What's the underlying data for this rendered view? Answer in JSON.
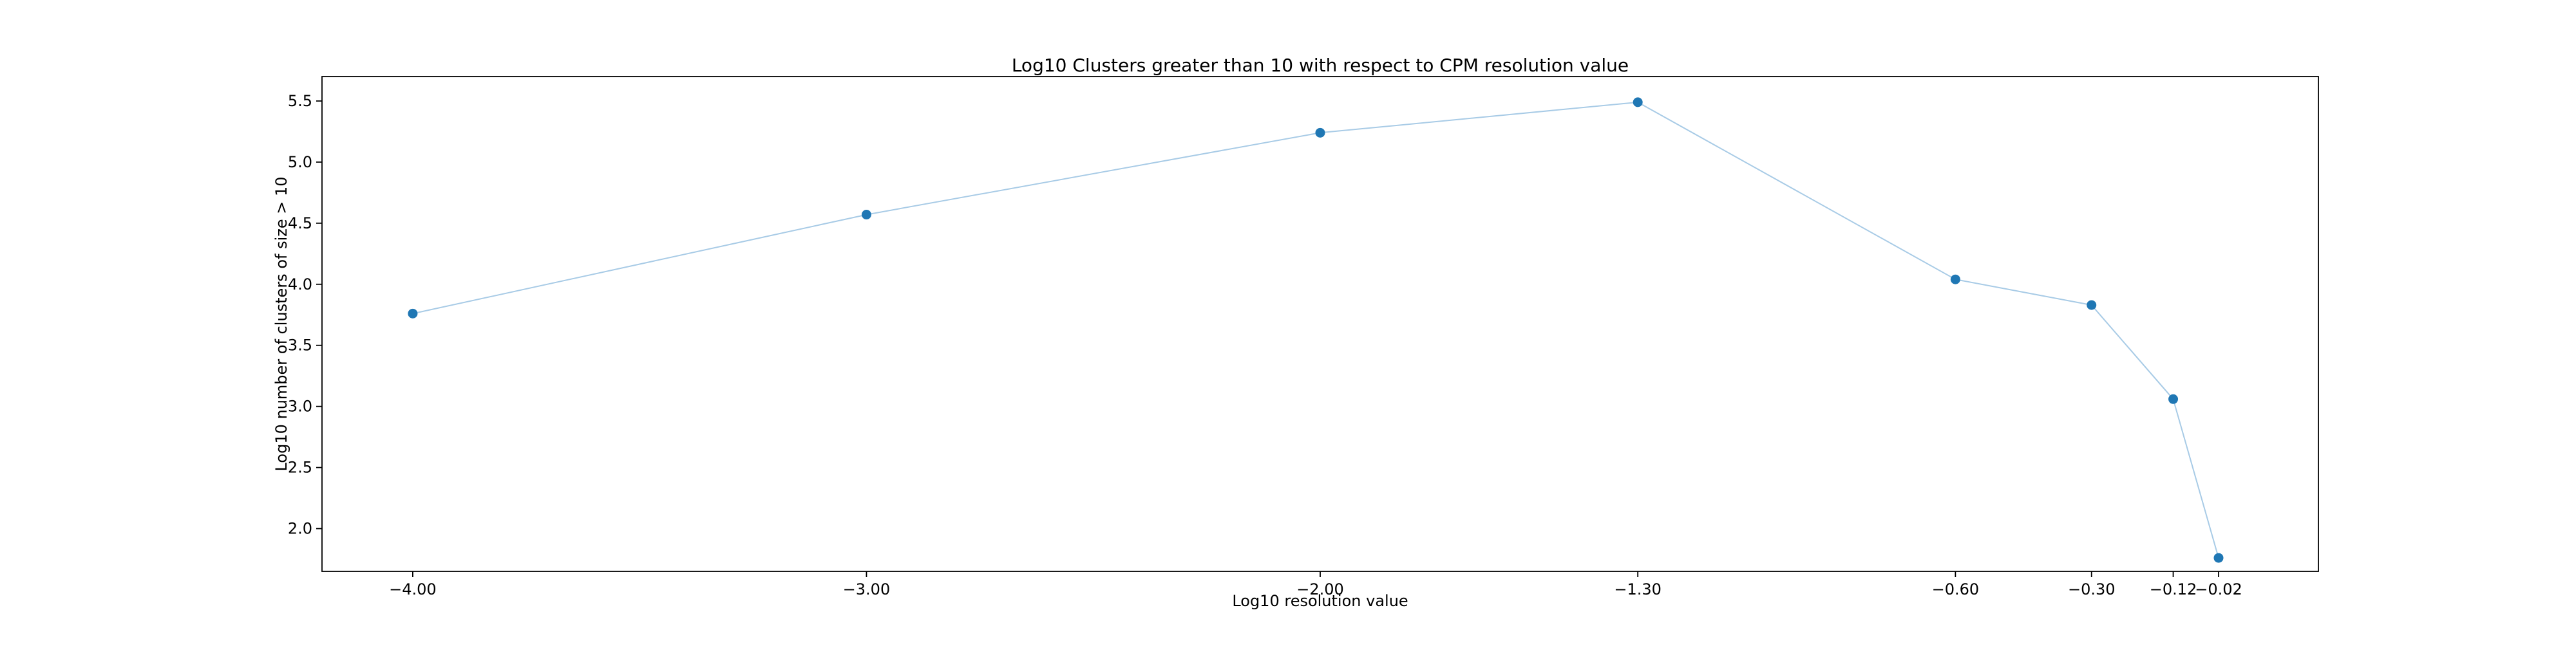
{
  "chart_data": {
    "type": "line",
    "title": "Log10 Clusters greater than 10 with respect to CPM resolution value",
    "xlabel": "Log10 resolution value",
    "ylabel": "Log10 number of clusters of size > 10",
    "x": [
      -4.0,
      -3.0,
      -2.0,
      -1.3,
      -0.6,
      -0.3,
      -0.12,
      -0.02
    ],
    "x_tick_labels": [
      "−4.00",
      "−3.00",
      "−2.00",
      "−1.30",
      "−0.60",
      "−0.30",
      "−0.12",
      "−0.02"
    ],
    "y_ticks": [
      2.0,
      2.5,
      3.0,
      3.5,
      4.0,
      4.5,
      5.0,
      5.5
    ],
    "y_tick_labels": [
      "2.0",
      "2.5",
      "3.0",
      "3.5",
      "4.0",
      "4.5",
      "5.0",
      "5.5"
    ],
    "xlim": [
      -4.2,
      0.2
    ],
    "ylim": [
      1.65,
      5.7
    ],
    "grid": false,
    "legend": "none",
    "series": [
      {
        "values": [
          3.76,
          4.57,
          5.24,
          5.49,
          4.04,
          3.83,
          3.06,
          1.76
        ],
        "line_color": "#a8cbe6",
        "marker_color": "#1f77b4"
      }
    ]
  }
}
